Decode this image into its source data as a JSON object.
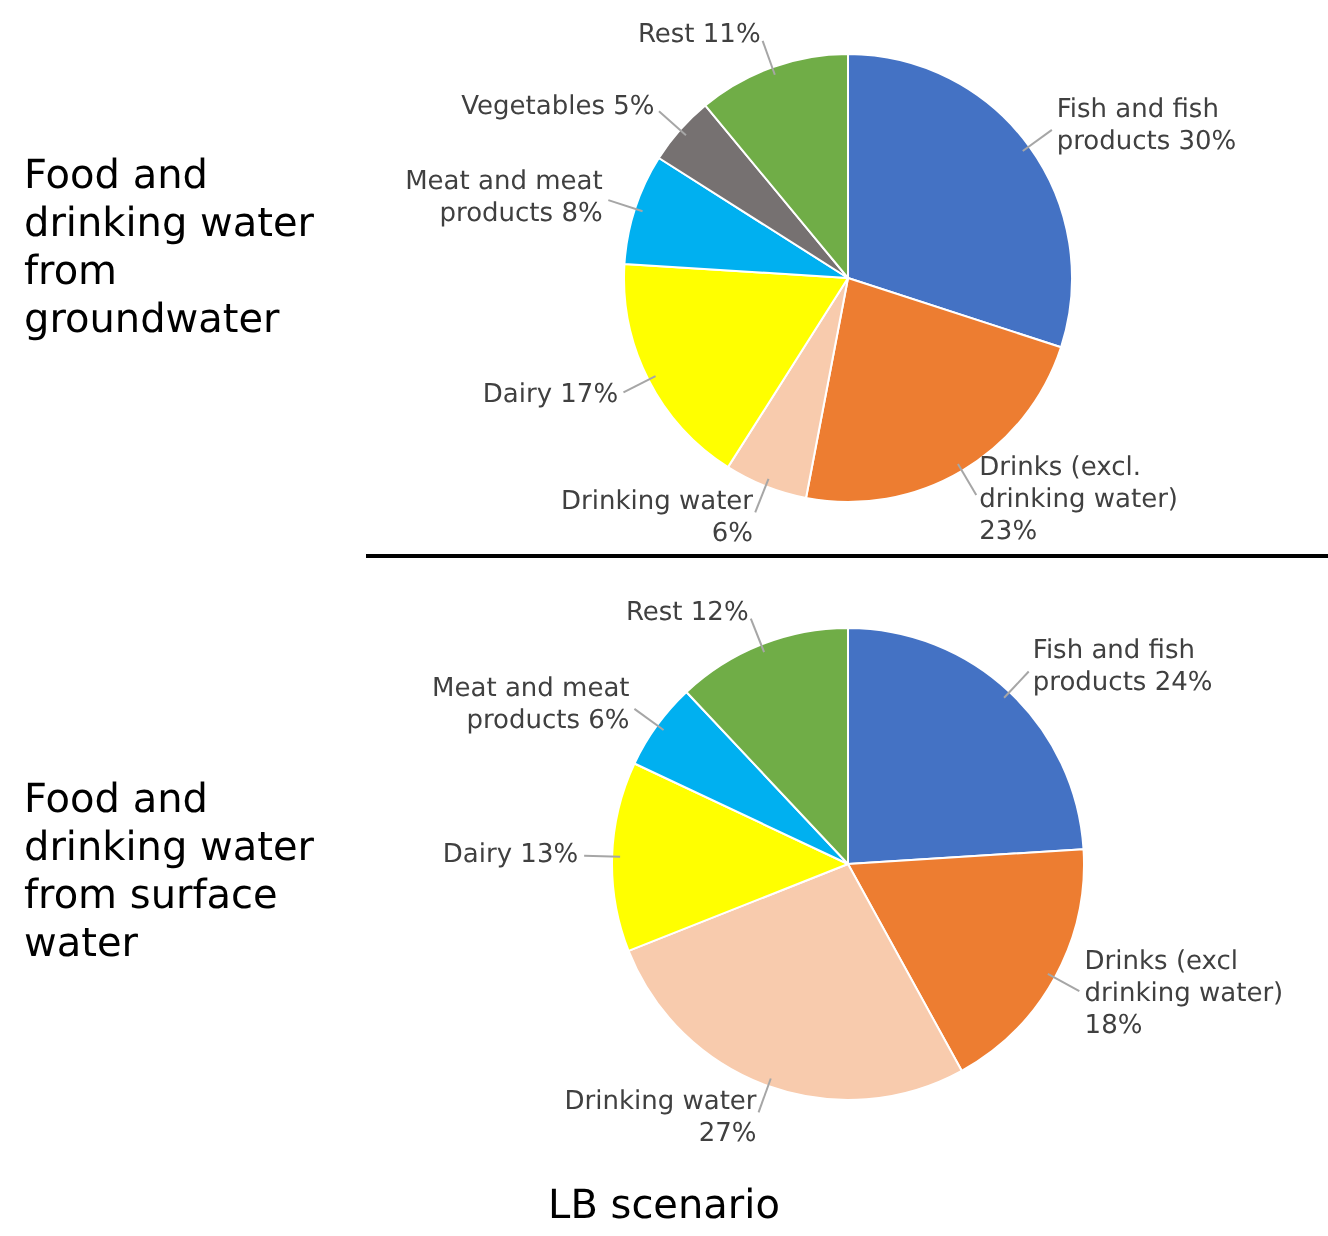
{
  "chart_data": [
    {
      "type": "pie",
      "title": "Food and drinking water from groundwater",
      "categories": [
        "Fish and fish products",
        "Drinks (excl. drinking water)",
        "Drinking water",
        "Dairy",
        "Meat and meat products",
        "Vegetables",
        "Rest"
      ],
      "values": [
        30,
        23,
        6,
        17,
        8,
        5,
        11
      ],
      "value_labels": [
        "30%",
        "23%",
        "6%",
        "17%",
        "8%",
        "5%",
        "11%"
      ],
      "colors": [
        "#4472c4",
        "#ed7d31",
        "#f8cbad",
        "#ffff00",
        "#00b0f0",
        "#767171",
        "#70ad47"
      ],
      "legend": false
    },
    {
      "type": "pie",
      "title": "Food and drinking water from surface water",
      "categories": [
        "Fish and fish products",
        "Drinks (excl drinking water)",
        "Drinking water",
        "Dairy",
        "Meat and meat products",
        "Rest"
      ],
      "values": [
        24,
        18,
        27,
        13,
        6,
        12
      ],
      "value_labels": [
        "24%",
        "18%",
        "27%",
        "13%",
        "6%",
        "12%"
      ],
      "colors": [
        "#4472c4",
        "#ed7d31",
        "#f8cbad",
        "#ffff00",
        "#00b0f0",
        "#70ad47"
      ],
      "legend": false,
      "annotations": [
        "LB scenario"
      ]
    }
  ]
}
